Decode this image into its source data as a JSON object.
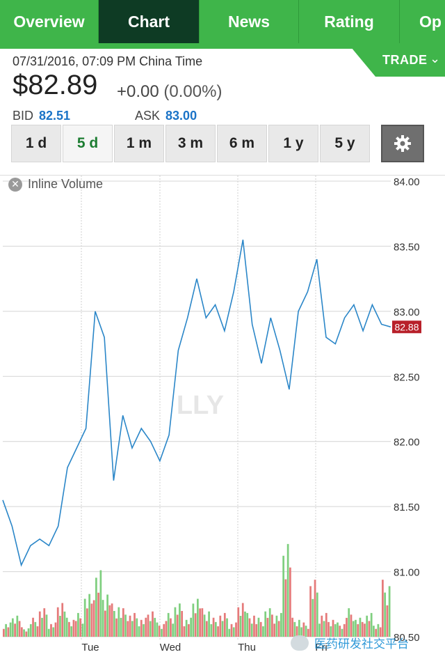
{
  "tabs": [
    {
      "label": "Overview",
      "active": false
    },
    {
      "label": "Chart",
      "active": true
    },
    {
      "label": "News",
      "active": false
    },
    {
      "label": "Rating",
      "active": false
    },
    {
      "label": "Op",
      "active": false
    }
  ],
  "trade": {
    "label": "TRADE",
    "chevron": "chevron-down-icon"
  },
  "quote": {
    "datetime": "07/31/2016, 07:09 PM China Time",
    "price": "$82.89",
    "change": "+0.00",
    "change_pct": "(0.00%)",
    "bid_label": "BID",
    "bid": "82.51",
    "ask_label": "ASK",
    "ask": "83.00"
  },
  "ranges": [
    {
      "label": "1 d",
      "active": false
    },
    {
      "label": "5 d",
      "active": true
    },
    {
      "label": "1 m",
      "active": false
    },
    {
      "label": "3 m",
      "active": false
    },
    {
      "label": "6 m",
      "active": false
    },
    {
      "label": "1 y",
      "active": false
    },
    {
      "label": "5 y",
      "active": false
    }
  ],
  "settings_icon": "gear-icon",
  "inline_volume_label": "Inline Volume",
  "chart_data": {
    "type": "line",
    "ticker_watermark": "LLY",
    "y_ticks": [
      "84.00",
      "83.50",
      "83.00",
      "82.50",
      "82.00",
      "81.50",
      "81.00",
      "80.50"
    ],
    "ylim": [
      80.5,
      84.0
    ],
    "x_ticks": [
      "Tue",
      "Wed",
      "Thu",
      "Fri"
    ],
    "last_price_label": "82.88",
    "line_color": "#2a86c8",
    "series": [
      {
        "values": [
          81.55,
          81.35,
          81.05,
          81.2,
          81.25,
          81.2,
          81.35,
          81.8,
          81.95,
          82.1,
          83.0,
          82.8,
          81.7,
          82.2,
          81.95,
          82.1,
          82.0,
          81.85,
          82.05,
          82.7,
          82.95,
          83.25,
          82.95,
          83.05,
          82.85,
          83.15,
          83.55,
          82.9,
          82.6,
          82.95,
          82.7,
          82.4,
          83.0,
          83.15,
          83.4,
          82.8,
          82.75,
          82.95,
          83.05,
          82.85,
          83.05,
          82.9,
          82.88
        ]
      }
    ],
    "volume": [
      3,
      5,
      2,
      4,
      6,
      3,
      8,
      4,
      5,
      9,
      14,
      10,
      7,
      6,
      5,
      4,
      6,
      3,
      5,
      7,
      4,
      9,
      6,
      4,
      5,
      3,
      8,
      5,
      4,
      6,
      5,
      22,
      4,
      3,
      12,
      5,
      4,
      3,
      6,
      4,
      5,
      3,
      12
    ]
  },
  "watermark": {
    "text": "医药研发社交平台"
  }
}
